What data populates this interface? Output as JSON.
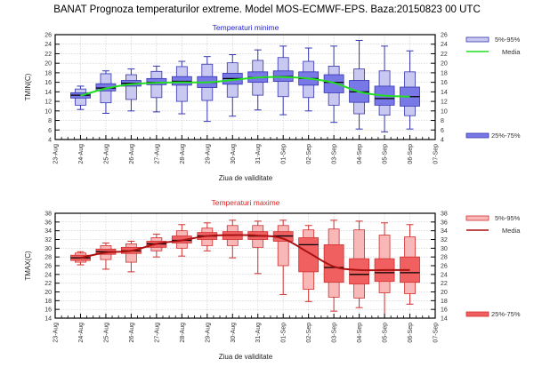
{
  "page": {
    "title": "BANAT  Prognoza temperaturilor extreme.  Model MOS-ECMWF-EPS. Baza:20150823 00 UTC"
  },
  "chart_data": [
    {
      "type": "boxplot",
      "title": "Temperaturi minime",
      "title_color": "#2222cc",
      "xlabel": "Ziua de validitate",
      "ylabel": "TMIN(C)",
      "ylim": [
        4,
        26
      ],
      "yticks": [
        4,
        6,
        8,
        10,
        12,
        14,
        16,
        18,
        20,
        22,
        24,
        26
      ],
      "categories": [
        "23-Aug",
        "24-Aug",
        "25-Aug",
        "26-Aug",
        "27-Aug",
        "28-Aug",
        "29-Aug",
        "30-Aug",
        "31-Aug",
        "01-Sep",
        "02-Sep",
        "03-Sep",
        "04-Sep",
        "05-Sep",
        "06-Sep",
        "07-Sep"
      ],
      "grid": true,
      "colors": {
        "outer_box": "#c8c8f0",
        "inner_box": "#7878e6",
        "edge": "#3535b0",
        "median_line": "#000000",
        "mean_line": "#22dd22"
      },
      "legend": {
        "placement": "right",
        "items": [
          "5%-95%",
          "Media",
          "25%-75%"
        ]
      },
      "series": [
        {
          "date": "24-Aug",
          "min": 10.3,
          "p5": 11.2,
          "p25": 12.7,
          "median": 13.3,
          "p75": 13.8,
          "p95": 14.6,
          "max": 15.2,
          "mean": 13.2
        },
        {
          "date": "25-Aug",
          "min": 9.5,
          "p5": 11.7,
          "p25": 14.2,
          "median": 14.8,
          "p75": 15.7,
          "p95": 17.8,
          "max": 18.4,
          "mean": 14.7
        },
        {
          "date": "26-Aug",
          "min": 10.0,
          "p5": 12.4,
          "p25": 15.2,
          "median": 15.8,
          "p75": 16.4,
          "p95": 17.6,
          "max": 18.8,
          "mean": 15.6
        },
        {
          "date": "27-Aug",
          "min": 9.8,
          "p5": 12.8,
          "p25": 15.5,
          "median": 16.0,
          "p75": 16.8,
          "p95": 18.3,
          "max": 19.4,
          "mean": 15.9
        },
        {
          "date": "28-Aug",
          "min": 9.4,
          "p5": 12.0,
          "p25": 15.4,
          "median": 16.2,
          "p75": 17.2,
          "p95": 19.3,
          "max": 20.4,
          "mean": 16.0
        },
        {
          "date": "29-Aug",
          "min": 7.8,
          "p5": 12.2,
          "p25": 14.9,
          "median": 16.0,
          "p75": 17.2,
          "p95": 19.8,
          "max": 21.4,
          "mean": 16.0
        },
        {
          "date": "30-Aug",
          "min": 8.9,
          "p5": 12.9,
          "p25": 15.6,
          "median": 16.8,
          "p75": 17.9,
          "p95": 20.1,
          "max": 21.8,
          "mean": 16.5
        },
        {
          "date": "31-Aug",
          "min": 10.2,
          "p5": 13.3,
          "p25": 16.0,
          "median": 17.0,
          "p75": 18.2,
          "p95": 20.6,
          "max": 22.8,
          "mean": 17.0
        },
        {
          "date": "01-Sep",
          "min": 9.2,
          "p5": 13.0,
          "p25": 16.2,
          "median": 17.2,
          "p75": 18.4,
          "p95": 21.2,
          "max": 23.6,
          "mean": 17.1
        },
        {
          "date": "02-Sep",
          "min": 10.0,
          "p5": 12.8,
          "p25": 15.4,
          "median": 16.8,
          "p75": 18.2,
          "p95": 20.4,
          "max": 23.2,
          "mean": 16.8
        },
        {
          "date": "03-Sep",
          "min": 7.6,
          "p5": 11.2,
          "p25": 13.8,
          "median": 16.0,
          "p75": 17.6,
          "p95": 19.4,
          "max": 23.6,
          "mean": 15.9
        },
        {
          "date": "04-Sep",
          "min": 6.2,
          "p5": 9.4,
          "p25": 11.8,
          "median": 14.0,
          "p75": 16.4,
          "p95": 18.8,
          "max": 24.8,
          "mean": 14.0
        },
        {
          "date": "05-Sep",
          "min": 5.6,
          "p5": 9.1,
          "p25": 11.2,
          "median": 12.6,
          "p75": 15.2,
          "p95": 18.4,
          "max": 23.6,
          "mean": 13.2
        },
        {
          "date": "06-Sep",
          "min": 6.2,
          "p5": 9.0,
          "p25": 11.0,
          "median": 13.0,
          "p75": 15.0,
          "p95": 18.2,
          "max": 22.6,
          "mean": 13.0
        }
      ]
    },
    {
      "type": "boxplot",
      "title": "Temperaturi maxime",
      "title_color": "#dd2222",
      "xlabel": "Ziua de validitate",
      "ylabel": "TMAX(C)",
      "ylim": [
        14,
        38
      ],
      "yticks": [
        14,
        16,
        18,
        20,
        22,
        24,
        26,
        28,
        30,
        32,
        34,
        36,
        38
      ],
      "categories": [
        "23-Aug",
        "24-Aug",
        "25-Aug",
        "26-Aug",
        "27-Aug",
        "28-Aug",
        "29-Aug",
        "30-Aug",
        "31-Aug",
        "01-Sep",
        "02-Sep",
        "03-Sep",
        "04-Sep",
        "05-Sep",
        "06-Sep",
        "07-Sep"
      ],
      "grid": true,
      "colors": {
        "outer_box": "#f8b8b8",
        "inner_box": "#f06060",
        "edge": "#d03030",
        "median_line": "#000000",
        "mean_line": "#aa1111"
      },
      "legend": {
        "placement": "right",
        "items": [
          "5%-95%",
          "Media",
          "25%-75%"
        ]
      },
      "series": [
        {
          "date": "24-Aug",
          "min": 26.2,
          "p5": 26.8,
          "p25": 27.2,
          "median": 27.8,
          "p75": 28.4,
          "p95": 28.9,
          "max": 29.2,
          "mean": 27.8
        },
        {
          "date": "25-Aug",
          "min": 25.2,
          "p5": 27.4,
          "p25": 28.6,
          "median": 29.2,
          "p75": 29.8,
          "p95": 30.6,
          "max": 31.2,
          "mean": 29.0
        },
        {
          "date": "26-Aug",
          "min": 24.6,
          "p5": 26.8,
          "p25": 28.8,
          "median": 29.4,
          "p75": 30.2,
          "p95": 31.0,
          "max": 31.6,
          "mean": 29.4
        },
        {
          "date": "27-Aug",
          "min": 28.0,
          "p5": 29.4,
          "p25": 30.2,
          "median": 31.0,
          "p75": 31.6,
          "p95": 32.4,
          "max": 33.2,
          "mean": 31.0
        },
        {
          "date": "28-Aug",
          "min": 28.2,
          "p5": 30.0,
          "p25": 31.2,
          "median": 31.8,
          "p75": 32.8,
          "p95": 34.0,
          "max": 35.4,
          "mean": 31.8
        },
        {
          "date": "29-Aug",
          "min": 29.4,
          "p5": 30.6,
          "p25": 32.0,
          "median": 32.8,
          "p75": 33.6,
          "p95": 34.6,
          "max": 35.8,
          "mean": 32.8
        },
        {
          "date": "30-Aug",
          "min": 27.8,
          "p5": 30.6,
          "p25": 32.0,
          "median": 33.0,
          "p75": 33.8,
          "p95": 35.2,
          "max": 36.4,
          "mean": 33.0
        },
        {
          "date": "31-Aug",
          "min": 24.2,
          "p5": 30.2,
          "p25": 32.0,
          "median": 32.8,
          "p75": 33.8,
          "p95": 35.2,
          "max": 36.2,
          "mean": 32.9
        },
        {
          "date": "01-Sep",
          "min": 19.4,
          "p5": 26.0,
          "p25": 31.6,
          "median": 32.8,
          "p75": 33.8,
          "p95": 35.2,
          "max": 36.4,
          "mean": 32.2
        },
        {
          "date": "02-Sep",
          "min": 17.8,
          "p5": 20.6,
          "p25": 24.6,
          "median": 30.8,
          "p75": 32.4,
          "p95": 34.2,
          "max": 35.2,
          "mean": 29.0
        },
        {
          "date": "03-Sep",
          "min": 15.6,
          "p5": 18.8,
          "p25": 22.2,
          "median": 25.6,
          "p75": 30.8,
          "p95": 34.4,
          "max": 36.4,
          "mean": 25.8
        },
        {
          "date": "04-Sep",
          "min": 16.4,
          "p5": 18.6,
          "p25": 21.8,
          "median": 24.0,
          "p75": 27.6,
          "p95": 34.2,
          "max": 36.2,
          "mean": 25.0
        },
        {
          "date": "05-Sep",
          "min": 14.0,
          "p5": 19.8,
          "p25": 22.4,
          "median": 24.4,
          "p75": 27.6,
          "p95": 33.0,
          "max": 35.8,
          "mean": 25.0
        },
        {
          "date": "06-Sep",
          "min": 17.2,
          "p5": 19.6,
          "p25": 22.2,
          "median": 24.4,
          "p75": 28.0,
          "p95": 32.6,
          "max": 35.4,
          "mean": 25.0
        }
      ]
    }
  ]
}
